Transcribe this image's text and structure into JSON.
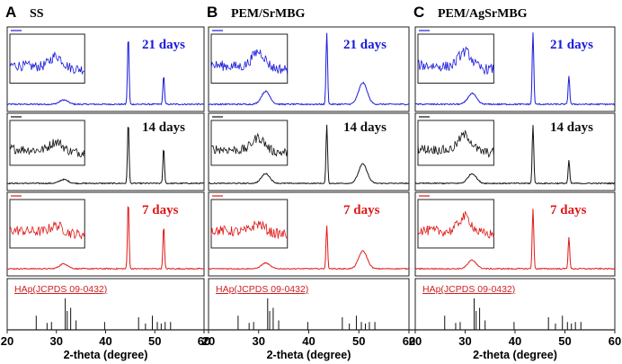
{
  "chart_data": {
    "type": "line",
    "figure_panels": [
      {
        "letter": "A",
        "title": "SS"
      },
      {
        "letter": "B",
        "title": "PEM/SrMBG"
      },
      {
        "letter": "C",
        "title": "PEM/AgSrMBG"
      }
    ],
    "xlabel": "2-theta (degree)",
    "xlim": [
      20,
      60
    ],
    "x_ticks": [
      20,
      30,
      40,
      50,
      60
    ],
    "series": [
      {
        "name": "21 days",
        "color": "#1a1adc"
      },
      {
        "name": "14 days",
        "color": "#111111"
      },
      {
        "name": "7 days",
        "color": "#e01818"
      }
    ],
    "reference": {
      "label": "HAp(JCPDS 09-0432)",
      "color": "#d02020",
      "peaks": [
        {
          "x": 25.9,
          "h": 0.45
        },
        {
          "x": 28.1,
          "h": 0.22
        },
        {
          "x": 29.0,
          "h": 0.25
        },
        {
          "x": 31.8,
          "h": 1.0
        },
        {
          "x": 32.2,
          "h": 0.6
        },
        {
          "x": 32.9,
          "h": 0.7
        },
        {
          "x": 34.0,
          "h": 0.3
        },
        {
          "x": 39.8,
          "h": 0.25
        },
        {
          "x": 46.7,
          "h": 0.4
        },
        {
          "x": 48.1,
          "h": 0.2
        },
        {
          "x": 49.5,
          "h": 0.45
        },
        {
          "x": 50.5,
          "h": 0.25
        },
        {
          "x": 51.3,
          "h": 0.2
        },
        {
          "x": 52.1,
          "h": 0.25
        },
        {
          "x": 53.2,
          "h": 0.25
        }
      ]
    },
    "panels": [
      {
        "id": "A",
        "rows": [
          {
            "label": "21 days",
            "peaks": [
              {
                "x": 44.6,
                "h": 0.95
              },
              {
                "x": 51.8,
                "h": 0.4
              },
              {
                "x": 31.5,
                "h": 0.06
              }
            ],
            "inset_peak": 0.4,
            "noise": 0.07
          },
          {
            "label": "14 days",
            "peaks": [
              {
                "x": 44.6,
                "h": 0.95
              },
              {
                "x": 51.8,
                "h": 0.55
              },
              {
                "x": 31.5,
                "h": 0.06
              }
            ],
            "inset_peak": 0.35,
            "noise": 0.07
          },
          {
            "label": "7 days",
            "peaks": [
              {
                "x": 44.6,
                "h": 0.95
              },
              {
                "x": 51.8,
                "h": 0.6
              },
              {
                "x": 31.5,
                "h": 0.07
              }
            ],
            "inset_peak": 0.25,
            "noise": 0.06
          }
        ]
      },
      {
        "id": "B",
        "rows": [
          {
            "label": "21 days",
            "peaks": [
              {
                "x": 43.6,
                "h": 1.0
              },
              {
                "x": 50.8,
                "h": 0.3
              },
              {
                "x": 31.4,
                "h": 0.18
              }
            ],
            "inset_peak": 0.55,
            "noise": 0.07
          },
          {
            "label": "14 days",
            "peaks": [
              {
                "x": 43.6,
                "h": 0.9
              },
              {
                "x": 50.8,
                "h": 0.3
              },
              {
                "x": 31.4,
                "h": 0.15
              }
            ],
            "inset_peak": 0.5,
            "noise": 0.06
          },
          {
            "label": "7 days",
            "peaks": [
              {
                "x": 43.6,
                "h": 0.6
              },
              {
                "x": 50.8,
                "h": 0.25
              },
              {
                "x": 31.4,
                "h": 0.08
              }
            ],
            "inset_peak": 0.3,
            "noise": 0.05
          }
        ]
      },
      {
        "id": "C",
        "rows": [
          {
            "label": "21 days",
            "peaks": [
              {
                "x": 43.6,
                "h": 1.0
              },
              {
                "x": 50.8,
                "h": 0.4
              },
              {
                "x": 31.4,
                "h": 0.15
              }
            ],
            "inset_peak": 0.55,
            "noise": 0.07
          },
          {
            "label": "14 days",
            "peaks": [
              {
                "x": 43.6,
                "h": 0.9
              },
              {
                "x": 50.8,
                "h": 0.35
              },
              {
                "x": 31.4,
                "h": 0.15
              }
            ],
            "inset_peak": 0.6,
            "noise": 0.07
          },
          {
            "label": "7 days",
            "peaks": [
              {
                "x": 43.6,
                "h": 0.85
              },
              {
                "x": 50.8,
                "h": 0.45
              },
              {
                "x": 31.4,
                "h": 0.12
              }
            ],
            "inset_peak": 0.55,
            "noise": 0.06
          }
        ]
      }
    ]
  }
}
